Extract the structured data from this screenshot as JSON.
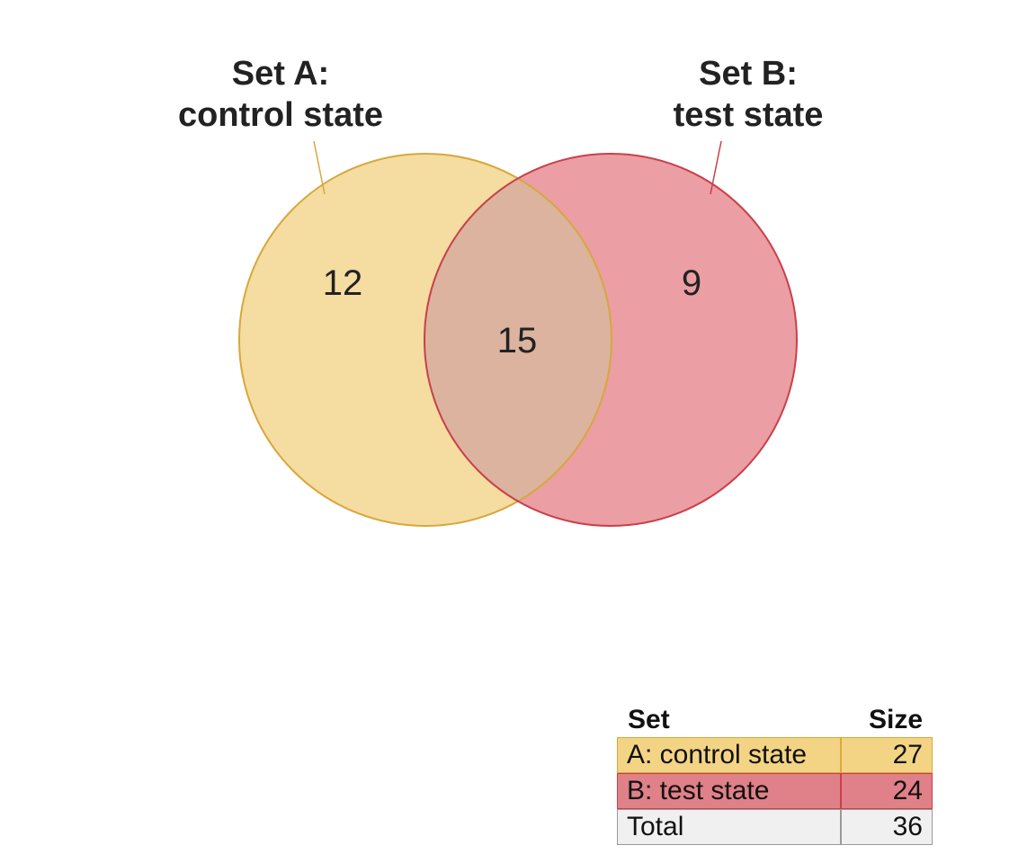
{
  "venn": {
    "set_a": {
      "title_line1": "Set A:",
      "title_line2": "control state",
      "fill_color": "#f5dca0",
      "stroke_color": "#d6a83c"
    },
    "set_b": {
      "title_line1": "Set B:",
      "title_line2": "test state",
      "fill_color": "#eb9ea3",
      "stroke_color": "#c9404a"
    },
    "intersection_color": "#dbb39f",
    "counts": {
      "a_only": "12",
      "a_and_b": "15",
      "b_only": "9"
    }
  },
  "table": {
    "header_set": "Set",
    "header_size": "Size",
    "rows": [
      {
        "name": "A: control state",
        "size": "27",
        "color": "#f3d484"
      },
      {
        "name": "B: test state",
        "size": "24",
        "color": "#e08088"
      },
      {
        "name": "Total",
        "size": "36",
        "color": "#f0f0f0"
      }
    ]
  }
}
